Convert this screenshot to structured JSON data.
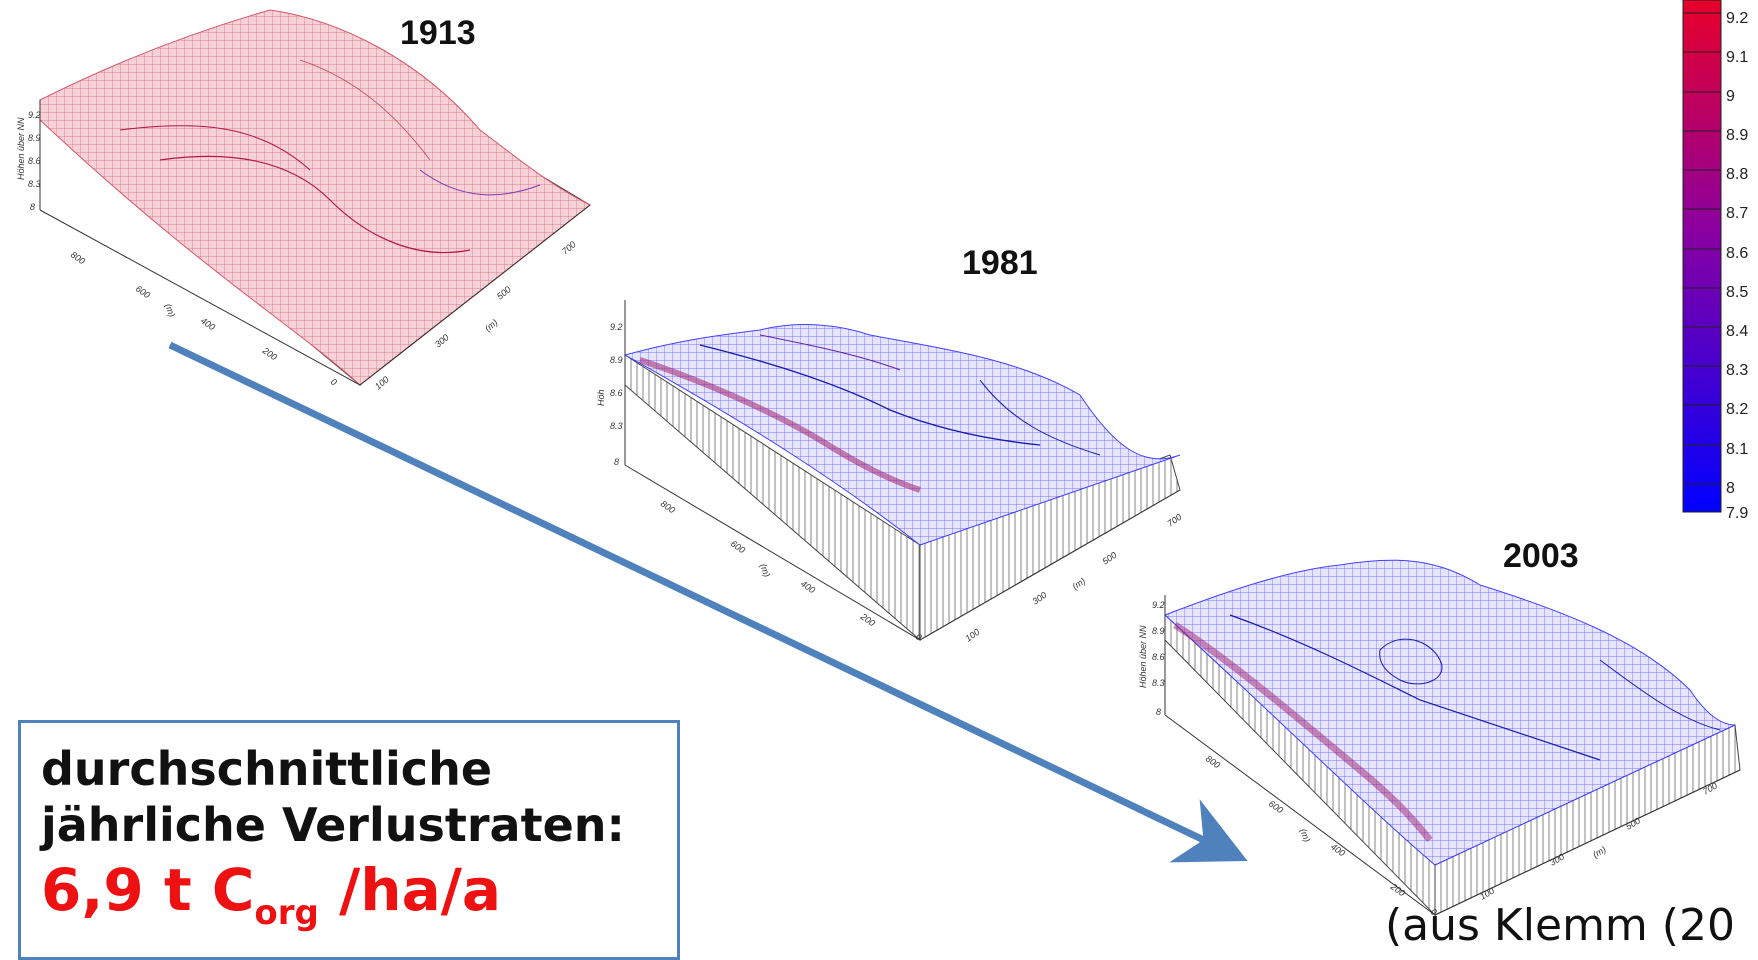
{
  "maps": [
    {
      "year": "1913",
      "zlabel": "Höhen über NN",
      "zticks": [
        "9.2",
        "8.9",
        "8.6",
        "8.3",
        "8"
      ],
      "xticks": [
        "800",
        "600",
        "400",
        "200",
        "0"
      ],
      "yticks": [
        "100",
        "300",
        "500",
        "700"
      ],
      "xunit": "(m)",
      "yunit": "(m)"
    },
    {
      "year": "1981",
      "zlabel": "Höh",
      "zticks": [
        "9.2",
        "8.9",
        "8.6",
        "8.3",
        "8"
      ],
      "xticks": [
        "800",
        "600",
        "400",
        "200",
        "0"
      ],
      "yticks": [
        "100",
        "300",
        "500",
        "700"
      ],
      "xunit": "(m)",
      "yunit": "(m)"
    },
    {
      "year": "2003",
      "zlabel": "Höhen über NN",
      "zticks": [
        "9.2",
        "8.9",
        "8.6",
        "8.3",
        "8"
      ],
      "xticks": [
        "800",
        "600",
        "400",
        "200",
        "0"
      ],
      "yticks": [
        "100",
        "300",
        "500",
        "700"
      ],
      "xunit": "(m)",
      "yunit": "(m)"
    }
  ],
  "legend": {
    "values": [
      "9.2",
      "9.1",
      "9",
      "8.9",
      "8.8",
      "8.7",
      "8.6",
      "8.5",
      "8.4",
      "8.3",
      "8.2",
      "8.1",
      "8",
      "7.9"
    ],
    "color_high": "#e8002a",
    "color_mid": "#8a00a0",
    "color_low": "#0000ff"
  },
  "callout": {
    "line1": "durchschnittliche",
    "line2": "jährliche Verlustraten:",
    "rate_value": "6,9 t C",
    "rate_sub": "org",
    "rate_unit": "/ha/a"
  },
  "source": "(aus Klemm (20",
  "colors": {
    "arrow": "#4f81bd",
    "surface_1913": "#e06070",
    "surface_blue": "#3b3bff"
  }
}
